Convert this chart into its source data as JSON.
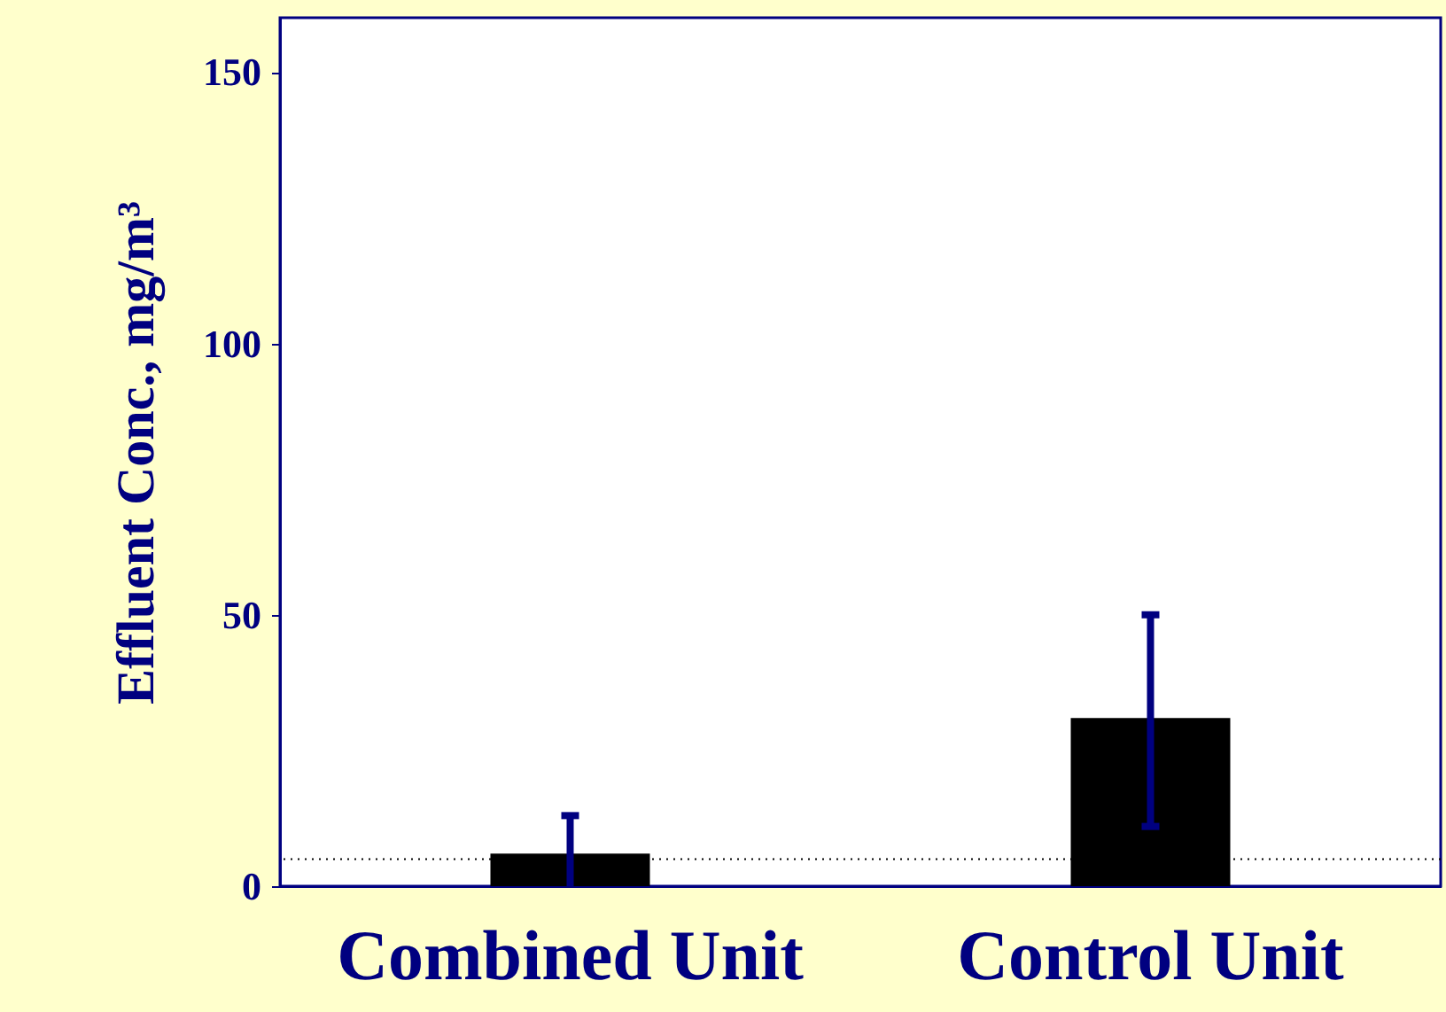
{
  "chart_data": {
    "type": "bar",
    "ylabel": "Effluent Conc., mg/m³",
    "categories": [
      "Combined Unit",
      "Control Unit"
    ],
    "values": [
      6,
      31
    ],
    "errors": [
      [
        0,
        13
      ],
      [
        11,
        50
      ]
    ],
    "color": "#000000",
    "ylim": [
      0,
      160
    ],
    "yticks": [
      0,
      50,
      100,
      150
    ],
    "grid": false,
    "ref_lines": [
      {
        "axis": "y",
        "value": 5,
        "color": "#000000",
        "line_style": "dotted"
      }
    ]
  }
}
